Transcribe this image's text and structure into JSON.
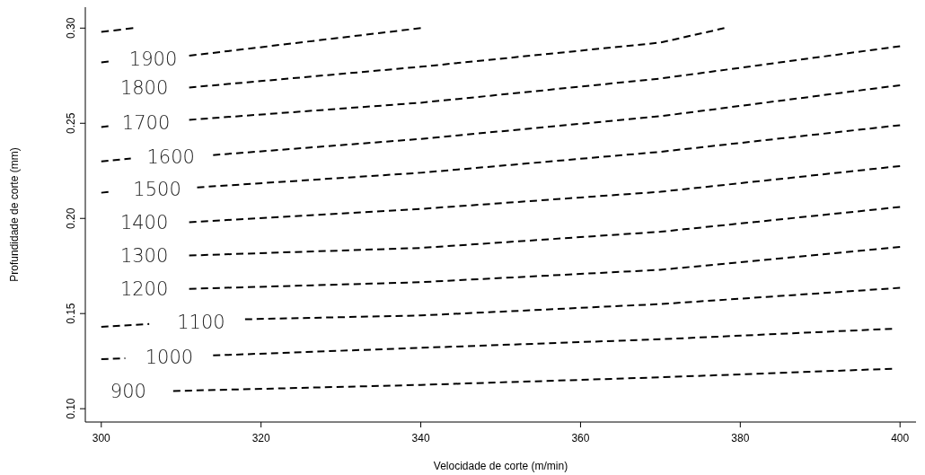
{
  "chart_data": {
    "type": "line",
    "xlabel": "Velocidade de corte (m/min)",
    "ylabel": "Profundidade de corte (mm)",
    "xlim": [
      298,
      402
    ],
    "ylim": [
      0.093,
      0.311
    ],
    "xticks": [
      300,
      320,
      340,
      360,
      380,
      400
    ],
    "yticks": [
      {
        "value": 0.1,
        "label": "0.10"
      },
      {
        "value": 0.15,
        "label": "0.15"
      },
      {
        "value": 0.2,
        "label": "0.20"
      },
      {
        "value": 0.25,
        "label": "0.25"
      },
      {
        "value": 0.3,
        "label": "0.30"
      }
    ],
    "grid": false,
    "marker": "none",
    "line_style": "dashed",
    "series": [
      {
        "name": "900",
        "color": "#000000",
        "x": [
          309,
          340,
          370,
          399
        ],
        "values": [
          0.1093,
          0.1125,
          0.1165,
          0.121
        ]
      },
      {
        "name": "1000",
        "color": "#000000",
        "x": [
          300,
          303,
          308.5,
          314,
          340,
          370,
          399
        ],
        "values": [
          0.126,
          0.1265,
          null,
          0.128,
          0.132,
          0.1365,
          0.142
        ]
      },
      {
        "name": "1100",
        "color": "#000000",
        "x": [
          300,
          306,
          312.5,
          318,
          340,
          370,
          400
        ],
        "values": [
          0.143,
          0.1445,
          null,
          0.147,
          0.149,
          0.155,
          0.1635
        ]
      },
      {
        "name": "1200",
        "color": "#000000",
        "x": [
          311,
          340,
          370,
          400
        ],
        "values": [
          0.163,
          0.1665,
          0.173,
          0.185
        ]
      },
      {
        "name": "1300",
        "color": "#000000",
        "x": [
          311,
          340,
          370,
          400
        ],
        "values": [
          0.1805,
          0.1845,
          0.193,
          0.206
        ]
      },
      {
        "name": "1400",
        "color": "#000000",
        "x": [
          311,
          340,
          370,
          400
        ],
        "values": [
          0.198,
          0.205,
          0.214,
          0.2275
        ]
      },
      {
        "name": "1500",
        "color": "#000000",
        "x": [
          300,
          301.2,
          307,
          312,
          340,
          370,
          400
        ],
        "values": [
          0.2135,
          0.214,
          null,
          0.2163,
          0.224,
          0.235,
          0.249
        ]
      },
      {
        "name": "1600",
        "color": "#000000",
        "x": [
          300,
          303.7,
          308.7,
          314,
          340,
          370,
          400
        ],
        "values": [
          0.23,
          0.2315,
          null,
          0.2333,
          0.2418,
          0.2537,
          0.27
        ]
      },
      {
        "name": "1700",
        "color": "#000000",
        "x": [
          300,
          301,
          305.6,
          311,
          340,
          370,
          400
        ],
        "values": [
          0.248,
          0.2485,
          null,
          0.2518,
          0.2608,
          0.2735,
          0.2905
        ]
      },
      {
        "name": "1800",
        "color": "#000000",
        "x": [
          311,
          340,
          370,
          378
        ],
        "values": [
          0.2688,
          0.2797,
          0.2924,
          0.3
        ]
      },
      {
        "name": "1900",
        "color": "#000000",
        "x": [
          300,
          301,
          306.5,
          311,
          340
        ],
        "values": [
          0.282,
          0.2825,
          null,
          0.2855,
          0.3
        ]
      },
      {
        "color": "#000000",
        "x": [
          300,
          304
        ],
        "values": [
          0.298,
          0.3
        ]
      }
    ]
  }
}
